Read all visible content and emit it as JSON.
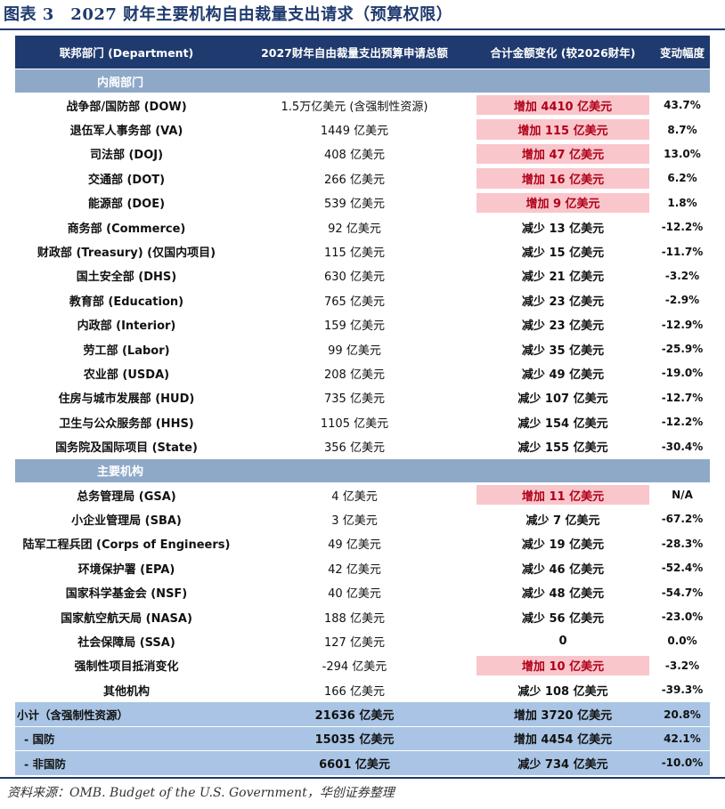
{
  "title": "图表 3　2027 财年主要机构自由裁量支出请求（预算权限）",
  "header": {
    "col1": "联邦部门 (Department)",
    "col2": "2027财年自由裁量支出预算申请总额",
    "col3": "合计金额变化 (较2026财年)",
    "col4": "变动幅度"
  },
  "section1": "内阁部门",
  "cabinet": [
    {
      "name": "战争部/国防部 (DOW)",
      "amount": "1.5万亿美元 (含强制性资源)",
      "change": "增加 4410 亿美元",
      "pct": "43.7%",
      "increase": true
    },
    {
      "name": "退伍军人事务部 (VA)",
      "amount": "1449 亿美元",
      "change": "增加 115 亿美元",
      "pct": "8.7%",
      "increase": true
    },
    {
      "name": "司法部 (DOJ)",
      "amount": "408 亿美元",
      "change": "增加 47 亿美元",
      "pct": "13.0%",
      "increase": true
    },
    {
      "name": "交通部 (DOT)",
      "amount": "266 亿美元",
      "change": "增加 16 亿美元",
      "pct": "6.2%",
      "increase": true
    },
    {
      "name": "能源部 (DOE)",
      "amount": "539 亿美元",
      "change": "增加 9 亿美元",
      "pct": "1.8%",
      "increase": true
    },
    {
      "name": "商务部 (Commerce)",
      "amount": "92 亿美元",
      "change": "减少 13 亿美元",
      "pct": "-12.2%",
      "increase": false
    },
    {
      "name": "财政部 (Treasury) (仅国内项目)",
      "amount": "115 亿美元",
      "change": "减少 15 亿美元",
      "pct": "-11.7%",
      "increase": false
    },
    {
      "name": "国土安全部 (DHS)",
      "amount": "630 亿美元",
      "change": "减少 21 亿美元",
      "pct": "-3.2%",
      "increase": false
    },
    {
      "name": "教育部 (Education)",
      "amount": "765 亿美元",
      "change": "减少 23 亿美元",
      "pct": "-2.9%",
      "increase": false
    },
    {
      "name": "内政部 (Interior)",
      "amount": "159 亿美元",
      "change": "减少 23 亿美元",
      "pct": "-12.9%",
      "increase": false
    },
    {
      "name": "劳工部 (Labor)",
      "amount": "99 亿美元",
      "change": "减少 35 亿美元",
      "pct": "-25.9%",
      "increase": false
    },
    {
      "name": "农业部 (USDA)",
      "amount": "208 亿美元",
      "change": "减少 49 亿美元",
      "pct": "-19.0%",
      "increase": false
    },
    {
      "name": "住房与城市发展部 (HUD)",
      "amount": "735 亿美元",
      "change": "减少 107 亿美元",
      "pct": "-12.7%",
      "increase": false
    },
    {
      "name": "卫生与公众服务部 (HHS)",
      "amount": "1105 亿美元",
      "change": "减少 154 亿美元",
      "pct": "-12.2%",
      "increase": false
    },
    {
      "name": "国务院及国际项目 (State)",
      "amount": "356 亿美元",
      "change": "减少 155 亿美元",
      "pct": "-30.4%",
      "increase": false
    }
  ],
  "section2": "主要机构",
  "agencies": [
    {
      "name": "总务管理局 (GSA)",
      "amount": "4 亿美元",
      "change": "增加 11 亿美元",
      "pct": "N/A",
      "increase": true
    },
    {
      "name": "小企业管理局 (SBA)",
      "amount": "3 亿美元",
      "change": "减少 7 亿美元",
      "pct": "-67.2%",
      "increase": false
    },
    {
      "name": "陆军工程兵团 (Corps of Engineers)",
      "amount": "49 亿美元",
      "change": "减少 19 亿美元",
      "pct": "-28.3%",
      "increase": false
    },
    {
      "name": "环境保护署 (EPA)",
      "amount": "42 亿美元",
      "change": "减少 46 亿美元",
      "pct": "-52.4%",
      "increase": false
    },
    {
      "name": "国家科学基金会 (NSF)",
      "amount": "40 亿美元",
      "change": "减少 48 亿美元",
      "pct": "-54.7%",
      "increase": false
    },
    {
      "name": "国家航空航天局 (NASA)",
      "amount": "188 亿美元",
      "change": "减少 56 亿美元",
      "pct": "-23.0%",
      "increase": false
    },
    {
      "name": "社会保障局 (SSA)",
      "amount": "127 亿美元",
      "change": "0",
      "pct": "0.0%",
      "increase": false
    },
    {
      "name": "强制性项目抵消变化",
      "amount": "-294 亿美元",
      "change": "增加 10 亿美元",
      "pct": "-3.2%",
      "increase": true
    },
    {
      "name": "其他机构",
      "amount": "166 亿美元",
      "change": "减少 108 亿美元",
      "pct": "-39.3%",
      "increase": false
    }
  ],
  "totals": [
    {
      "name": "小计（含强制性资源）",
      "amount": "21636 亿美元",
      "change": "增加 3720 亿美元",
      "pct": "20.8%"
    },
    {
      "name": "- 国防",
      "amount": "15035 亿美元",
      "change": "增加 4454 亿美元",
      "pct": "42.1%"
    },
    {
      "name": "- 非国防",
      "amount": "6601 亿美元",
      "change": "减少 734 亿美元",
      "pct": "-10.0%"
    }
  ],
  "source": "资料来源：OMB. Budget of the U.S. Government，华创证券整理",
  "colors": {
    "header": "#1f3a6e",
    "section": "#8ea9c8",
    "increase_bg": "#f9c6cc",
    "increase_text": "#b00018",
    "total_bg": "#a9c4e4"
  }
}
